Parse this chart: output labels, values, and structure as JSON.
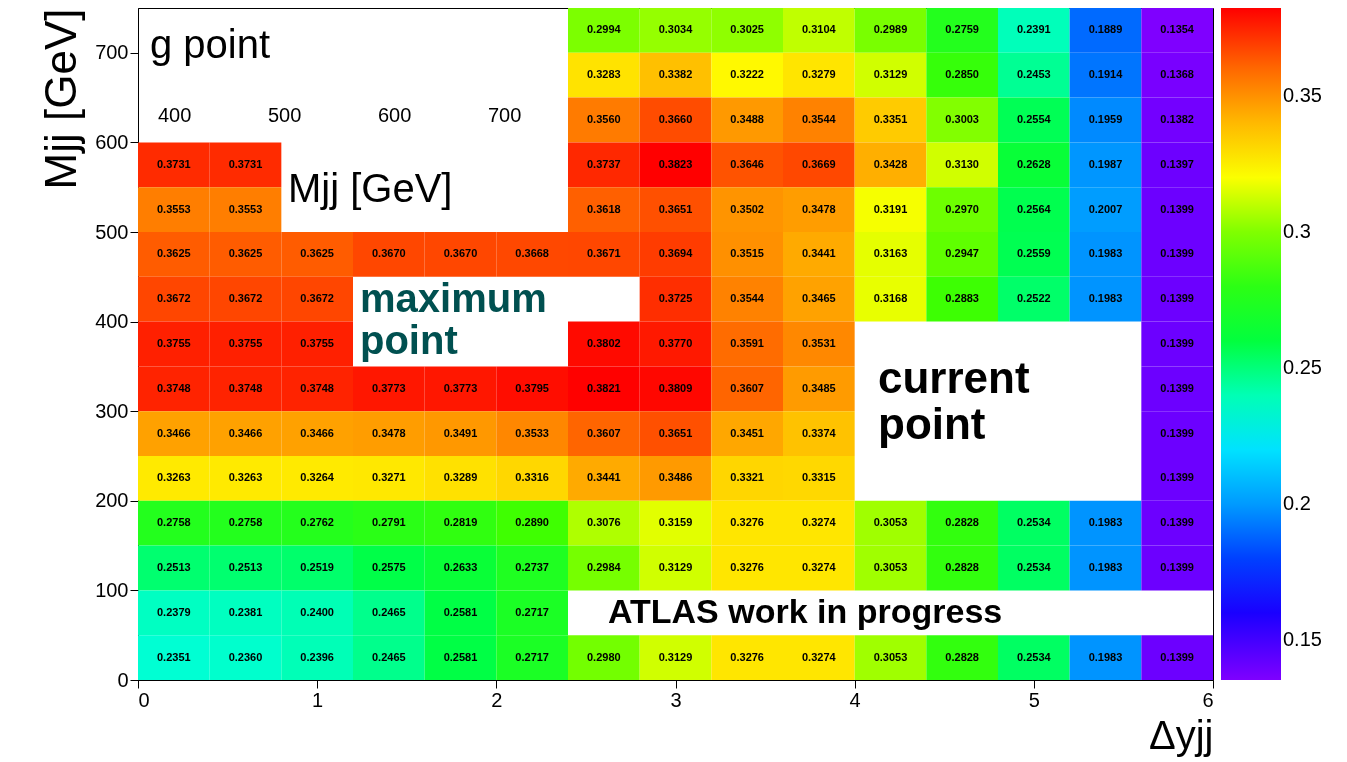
{
  "chart_data": {
    "type": "heatmap",
    "xlabel": "Δyjj",
    "ylabel": "Mjj [GeV]",
    "x": [
      0.2,
      0.6,
      1.0,
      1.4,
      1.8,
      2.2,
      2.6,
      3.0,
      3.4,
      3.8,
      4.2,
      4.6,
      5.0,
      5.4,
      5.8
    ],
    "y": [
      725,
      675,
      625,
      575,
      525,
      475,
      425,
      375,
      325,
      275,
      225,
      175,
      125,
      75,
      25
    ],
    "xlim": [
      0,
      6
    ],
    "xticks": [
      0,
      1,
      2,
      3,
      4,
      5,
      6
    ],
    "ylim": [
      0,
      750
    ],
    "yticks": [
      0,
      100,
      200,
      300,
      400,
      500,
      600,
      700
    ],
    "clim": [
      0.1354,
      0.3823
    ],
    "cticks": [
      0.15,
      0.2,
      0.25,
      0.3,
      0.35
    ],
    "cell_labels": [
      [
        null,
        null,
        null,
        null,
        null,
        null,
        "0.2994",
        "0.3034",
        "0.3025",
        "0.3104",
        "0.2989",
        "0.2759",
        "0.2391",
        "0.1889",
        "0.1354"
      ],
      [
        null,
        null,
        null,
        null,
        null,
        null,
        "0.3283",
        "0.3382",
        "0.3222",
        "0.3279",
        "0.3129",
        "0.2850",
        "0.2453",
        "0.1914",
        "0.1368"
      ],
      [
        null,
        null,
        null,
        null,
        null,
        null,
        "0.3560",
        "0.3660",
        "0.3488",
        "0.3544",
        "0.3351",
        "0.3003",
        "0.2554",
        "0.1959",
        "0.1382"
      ],
      [
        "0.3731",
        "0.3731",
        null,
        null,
        null,
        null,
        "0.3737",
        "0.3823",
        "0.3646",
        "0.3669",
        "0.3428",
        "0.3130",
        "0.2628",
        "0.1987",
        "0.1397"
      ],
      [
        "0.3553",
        "0.3553",
        null,
        null,
        null,
        null,
        "0.3618",
        "0.3651",
        "0.3502",
        "0.3478",
        "0.3191",
        "0.2970",
        "0.2564",
        "0.2007",
        "0.1399"
      ],
      [
        "0.3625",
        "0.3625",
        "0.3625",
        "0.3670",
        "0.3670",
        "0.3668",
        "0.3671",
        "0.3694",
        "0.3515",
        "0.3441",
        "0.3163",
        "0.2947",
        "0.2559",
        "0.1983",
        "0.1399"
      ],
      [
        "0.3672",
        "0.3672",
        "0.3672",
        null,
        null,
        null,
        null,
        "0.3725",
        "0.3544",
        "0.3465",
        "0.3168",
        "0.2883",
        "0.2522",
        "0.1983",
        "0.1399"
      ],
      [
        "0.3755",
        "0.3755",
        "0.3755",
        null,
        null,
        null,
        "0.3802",
        "0.3770",
        "0.3591",
        "0.3531",
        null,
        null,
        null,
        null,
        "0.1399"
      ],
      [
        "0.3748",
        "0.3748",
        "0.3748",
        "0.3773",
        "0.3773",
        "0.3795",
        "0.3821",
        "0.3809",
        "0.3607",
        "0.3485",
        null,
        null,
        null,
        null,
        "0.1399"
      ],
      [
        "0.3466",
        "0.3466",
        "0.3466",
        "0.3478",
        "0.3491",
        "0.3533",
        "0.3607",
        "0.3651",
        "0.3451",
        "0.3374",
        null,
        null,
        null,
        null,
        "0.1399"
      ],
      [
        "0.3263",
        "0.3263",
        "0.3264",
        "0.3271",
        "0.3289",
        "0.3316",
        "0.3441",
        "0.3486",
        "0.3321",
        "0.3315",
        null,
        null,
        null,
        null,
        "0.1399"
      ],
      [
        "0.2758",
        "0.2758",
        "0.2762",
        "0.2791",
        "0.2819",
        "0.2890",
        "0.3076",
        "0.3159",
        "0.3276",
        "0.3274",
        "0.3053",
        "0.2828",
        "0.2534",
        "0.1983",
        "0.1399"
      ],
      [
        "0.2513",
        "0.2513",
        "0.2519",
        "0.2575",
        "0.2633",
        "0.2737",
        "0.2984",
        "0.3129",
        "0.3276",
        "0.3274",
        "0.3053",
        "0.2828",
        "0.2534",
        "0.1983",
        "0.1399"
      ],
      [
        "0.2379",
        "0.2381",
        "0.2400",
        "0.2465",
        "0.2581",
        "0.2717",
        null,
        null,
        null,
        null,
        null,
        null,
        null,
        null,
        null
      ],
      [
        "0.2351",
        "0.2360",
        "0.2396",
        "0.2465",
        "0.2581",
        "0.2717",
        "0.2980",
        "0.3129",
        "0.3276",
        "0.3274",
        "0.3053",
        "0.2828",
        "0.2534",
        "0.1983",
        "0.1399"
      ]
    ],
    "cells": [
      [
        null,
        null,
        null,
        null,
        null,
        null,
        0.2994,
        0.3034,
        0.3025,
        0.3104,
        0.2989,
        0.2759,
        0.2391,
        0.1889,
        0.1354
      ],
      [
        null,
        null,
        null,
        null,
        null,
        null,
        0.3283,
        0.3382,
        0.3222,
        0.3279,
        0.3129,
        0.285,
        0.2453,
        0.1914,
        0.1368
      ],
      [
        null,
        null,
        null,
        null,
        null,
        null,
        0.356,
        0.366,
        0.3488,
        0.3544,
        0.3351,
        0.3003,
        0.2554,
        0.1959,
        0.1382
      ],
      [
        0.3731,
        0.3731,
        null,
        null,
        null,
        null,
        0.3737,
        0.3823,
        0.3646,
        0.3669,
        0.3428,
        0.313,
        0.2628,
        0.1987,
        0.1397
      ],
      [
        0.3553,
        0.3553,
        null,
        null,
        null,
        null,
        0.3618,
        0.3651,
        0.3502,
        0.3478,
        0.3191,
        0.297,
        0.2564,
        0.2007,
        0.1399
      ],
      [
        0.3625,
        0.3625,
        0.3625,
        0.367,
        0.367,
        0.3668,
        0.3671,
        0.3694,
        0.3515,
        0.3441,
        0.3163,
        0.2947,
        0.2559,
        0.1983,
        0.1399
      ],
      [
        0.3672,
        0.3672,
        0.3672,
        null,
        null,
        null,
        null,
        0.3725,
        0.3544,
        0.3465,
        0.3168,
        0.2883,
        0.2522,
        0.1983,
        0.1399
      ],
      [
        0.3755,
        0.3755,
        0.3755,
        null,
        null,
        null,
        0.3802,
        0.377,
        0.3591,
        0.3531,
        null,
        null,
        null,
        null,
        0.1399
      ],
      [
        0.3748,
        0.3748,
        0.3748,
        0.3773,
        0.3773,
        0.3795,
        0.3821,
        0.3809,
        0.3607,
        0.3485,
        null,
        null,
        null,
        null,
        0.1399
      ],
      [
        0.3466,
        0.3466,
        0.3466,
        0.3478,
        0.3491,
        0.3533,
        0.3607,
        0.3651,
        0.3451,
        0.3374,
        null,
        null,
        null,
        null,
        0.1399
      ],
      [
        0.3263,
        0.3263,
        0.3264,
        0.3271,
        0.3289,
        0.3316,
        0.3441,
        0.3486,
        0.3321,
        0.3315,
        null,
        null,
        null,
        null,
        0.1399
      ],
      [
        0.2758,
        0.2758,
        0.2762,
        0.2791,
        0.2819,
        0.289,
        0.3076,
        0.3159,
        0.3276,
        0.3274,
        0.3053,
        0.2828,
        0.2534,
        0.1983,
        0.1399
      ],
      [
        0.2513,
        0.2513,
        0.2519,
        0.2575,
        0.2633,
        0.2737,
        0.2984,
        0.3129,
        0.3276,
        0.3274,
        0.3053,
        0.2828,
        0.2534,
        0.1983,
        0.1399
      ],
      [
        0.2379,
        0.2381,
        0.24,
        0.2465,
        0.2581,
        0.2717,
        null,
        null,
        null,
        null,
        null,
        null,
        null,
        null,
        null
      ],
      [
        0.2351,
        0.236,
        0.2396,
        0.2465,
        0.2581,
        0.2717,
        0.298,
        0.3129,
        0.3276,
        0.3274,
        0.3053,
        0.2828,
        0.2534,
        0.1983,
        0.1399
      ]
    ],
    "annotations": [
      "g point",
      "400",
      "500",
      "600",
      "700",
      "Mjj [GeV]",
      "maximum point",
      "current point",
      "ATLAS work in progress"
    ]
  }
}
